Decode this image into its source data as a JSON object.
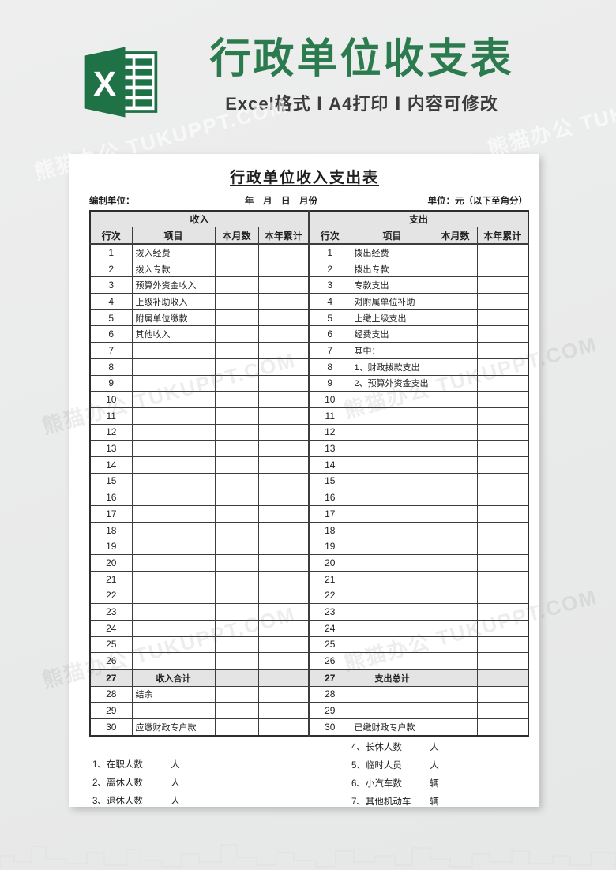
{
  "banner": {
    "title": "行政单位收支表",
    "subtitle": "Excel格式 Ⅰ A4打印 Ⅰ 内容可修改",
    "title_color": "#2b7b4f",
    "icon_color": "#1f7245",
    "icon_letter": "X"
  },
  "watermark": {
    "text": "熊猫办公 TUKUPPT.COM"
  },
  "sheet": {
    "title": "行政单位收入支出表",
    "prepared_by_label": "编制单位：",
    "date_label": "年　月　日　月份",
    "unit_label": "单位：元（以下至角分）",
    "income_header": "收入",
    "expense_header": "支出",
    "columns": [
      "行次",
      "项目",
      "本月数",
      "本年累计"
    ],
    "rows": [
      {
        "num": "1",
        "income": "拨入经费",
        "expense": "拨出经费"
      },
      {
        "num": "2",
        "income": "拨入专款",
        "expense": "拨出专款"
      },
      {
        "num": "3",
        "income": "预算外资金收入",
        "expense": "专款支出"
      },
      {
        "num": "4",
        "income": "上级补助收入",
        "expense": "对附属单位补助"
      },
      {
        "num": "5",
        "income": "附属单位缴款",
        "expense": "上缴上级支出"
      },
      {
        "num": "6",
        "income": "其他收入",
        "expense": "经费支出"
      },
      {
        "num": "7",
        "income": "",
        "expense": "其中："
      },
      {
        "num": "8",
        "income": "",
        "expense": "1、财政拨款支出"
      },
      {
        "num": "9",
        "income": "",
        "expense": "2、预算外资金支出"
      },
      {
        "num": "10",
        "income": "",
        "expense": ""
      },
      {
        "num": "11",
        "income": "",
        "expense": ""
      },
      {
        "num": "12",
        "income": "",
        "expense": ""
      },
      {
        "num": "13",
        "income": "",
        "expense": ""
      },
      {
        "num": "14",
        "income": "",
        "expense": ""
      },
      {
        "num": "15",
        "income": "",
        "expense": ""
      },
      {
        "num": "16",
        "income": "",
        "expense": ""
      },
      {
        "num": "17",
        "income": "",
        "expense": ""
      },
      {
        "num": "18",
        "income": "",
        "expense": ""
      },
      {
        "num": "19",
        "income": "",
        "expense": ""
      },
      {
        "num": "20",
        "income": "",
        "expense": ""
      },
      {
        "num": "21",
        "income": "",
        "expense": ""
      },
      {
        "num": "22",
        "income": "",
        "expense": ""
      },
      {
        "num": "23",
        "income": "",
        "expense": ""
      },
      {
        "num": "24",
        "income": "",
        "expense": ""
      },
      {
        "num": "25",
        "income": "",
        "expense": ""
      },
      {
        "num": "26",
        "income": "",
        "expense": ""
      },
      {
        "num": "27",
        "income": "收入合计",
        "expense": "支出总计",
        "summary": true
      },
      {
        "num": "28",
        "income": "结余",
        "expense": ""
      },
      {
        "num": "29",
        "income": "",
        "expense": ""
      },
      {
        "num": "30",
        "income": "应缴财政专户款",
        "expense": "已缴财政专户款"
      }
    ],
    "footnotes": {
      "left": [
        {
          "label": "1、在职人数",
          "unit": "人"
        },
        {
          "label": "2、离休人数",
          "unit": "人"
        },
        {
          "label": "3、退休人数",
          "unit": "人"
        }
      ],
      "right": [
        {
          "label": "4、长休人数",
          "unit": "人"
        },
        {
          "label": "5、临时人员",
          "unit": "人"
        },
        {
          "label": "6、小汽车数",
          "unit": "辆"
        },
        {
          "label": "7、其他机动车",
          "unit": "辆"
        }
      ]
    }
  }
}
